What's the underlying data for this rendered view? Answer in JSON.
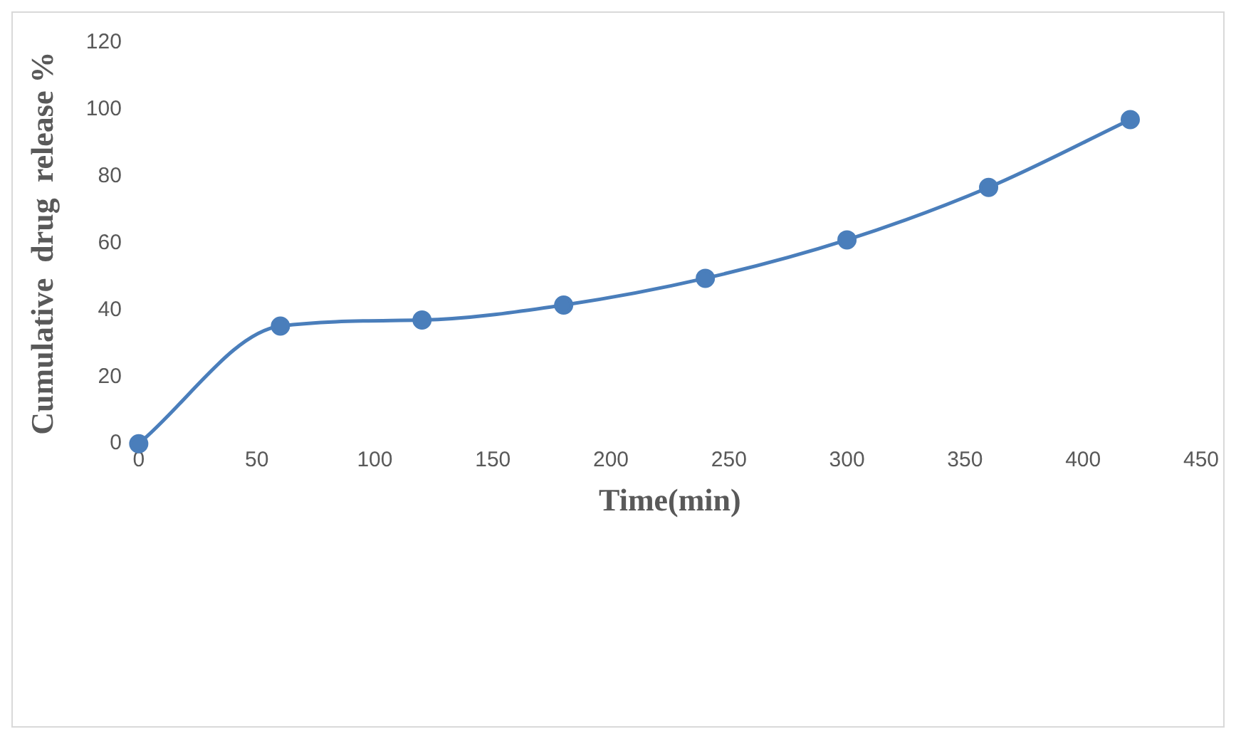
{
  "chart_data": {
    "type": "line",
    "xlabel": "Time(min)",
    "ylabel": "Cumulative  drug  release %",
    "x": [
      0,
      60,
      120,
      180,
      240,
      300,
      360,
      420
    ],
    "series": [
      {
        "color": "#4a7ebb",
        "values": [
          0,
          35.2,
          37,
          41.5,
          49.5,
          61,
          76.7,
          97
        ]
      }
    ],
    "xlim": [
      0,
      450
    ],
    "xticks": [
      0,
      50,
      100,
      150,
      200,
      250,
      300,
      350,
      400,
      450
    ],
    "ylim": [
      0,
      120
    ],
    "yticks": [
      0,
      20,
      40,
      60,
      80,
      100,
      120
    ],
    "grid": false,
    "legend": false,
    "marker": "circle",
    "line_style": "solid"
  }
}
